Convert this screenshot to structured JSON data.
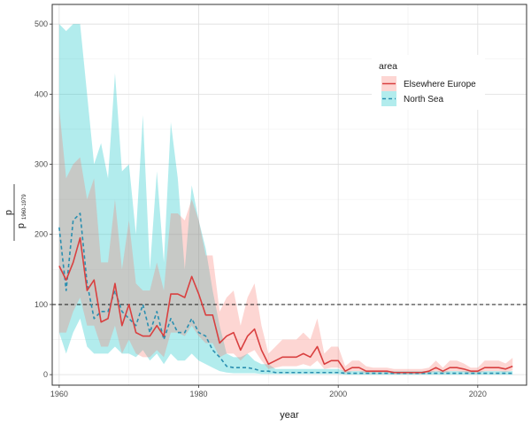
{
  "chart_data": {
    "type": "line",
    "xlabel": "year",
    "ylabel": {
      "numerator": "p",
      "denominator": "p",
      "denominator_subscript": "1960-1979"
    },
    "xlim": [
      1959,
      2027
    ],
    "ylim": [
      -15,
      528
    ],
    "x_ticks": [
      1960,
      1980,
      2000,
      2020
    ],
    "y_ticks": [
      0,
      100,
      200,
      300,
      400,
      500
    ],
    "grid": true,
    "reference_line": {
      "y": 100,
      "style": "dashed",
      "color": "#000000"
    },
    "legend": {
      "title": "area",
      "position": "top-right"
    },
    "series": [
      {
        "name": "Elsewhere Europe",
        "color": "#d94040",
        "band_color": "#f8766d",
        "line_style": "solid",
        "x": [
          1960,
          1961,
          1962,
          1963,
          1964,
          1965,
          1966,
          1967,
          1968,
          1969,
          1970,
          1971,
          1972,
          1973,
          1974,
          1975,
          1976,
          1977,
          1978,
          1979,
          1980,
          1981,
          1982,
          1983,
          1984,
          1985,
          1986,
          1987,
          1988,
          1989,
          1990,
          1991,
          1992,
          1993,
          1994,
          1995,
          1996,
          1997,
          1998,
          1999,
          2000,
          2001,
          2002,
          2003,
          2004,
          2005,
          2006,
          2007,
          2008,
          2009,
          2010,
          2011,
          2012,
          2013,
          2014,
          2015,
          2016,
          2017,
          2018,
          2019,
          2020,
          2021,
          2022,
          2023,
          2024,
          2025
        ],
        "y": [
          155,
          135,
          160,
          195,
          120,
          135,
          75,
          80,
          130,
          70,
          100,
          60,
          55,
          55,
          70,
          55,
          115,
          115,
          110,
          140,
          115,
          85,
          85,
          45,
          55,
          60,
          35,
          55,
          65,
          35,
          15,
          20,
          25,
          25,
          25,
          30,
          25,
          40,
          15,
          20,
          20,
          5,
          10,
          10,
          5,
          5,
          5,
          5,
          3,
          3,
          3,
          3,
          3,
          5,
          10,
          5,
          10,
          10,
          8,
          5,
          5,
          10,
          10,
          10,
          8,
          12
        ],
        "y_lower": [
          60,
          60,
          90,
          110,
          70,
          70,
          40,
          40,
          70,
          30,
          50,
          30,
          25,
          25,
          35,
          25,
          60,
          60,
          55,
          70,
          55,
          45,
          45,
          25,
          30,
          30,
          20,
          30,
          35,
          20,
          8,
          10,
          12,
          12,
          12,
          15,
          12,
          20,
          8,
          10,
          10,
          2,
          5,
          5,
          2,
          2,
          2,
          2,
          1,
          1,
          1,
          1,
          1,
          2,
          5,
          2,
          5,
          5,
          4,
          2,
          2,
          5,
          5,
          5,
          4,
          6
        ],
        "y_upper": [
          380,
          280,
          300,
          310,
          250,
          280,
          160,
          160,
          250,
          150,
          220,
          130,
          120,
          120,
          160,
          120,
          230,
          230,
          220,
          250,
          220,
          170,
          170,
          90,
          110,
          120,
          70,
          110,
          130,
          70,
          30,
          40,
          50,
          50,
          50,
          60,
          50,
          80,
          30,
          40,
          40,
          12,
          20,
          20,
          12,
          10,
          10,
          10,
          8,
          8,
          8,
          8,
          8,
          10,
          20,
          10,
          20,
          20,
          16,
          10,
          10,
          20,
          20,
          20,
          16,
          24
        ]
      },
      {
        "name": "North Sea",
        "color": "#2a8fb0",
        "band_color": "#00bfc4",
        "line_style": "dashed",
        "x": [
          1960,
          1961,
          1962,
          1963,
          1964,
          1965,
          1966,
          1967,
          1968,
          1969,
          1970,
          1971,
          1972,
          1973,
          1974,
          1975,
          1976,
          1977,
          1978,
          1979,
          1980,
          1981,
          1982,
          1983,
          1984,
          1985,
          1986,
          1987,
          1988,
          1989,
          1990,
          1991,
          1992,
          1993,
          1994,
          1995,
          1996,
          1997,
          1998,
          1999,
          2000,
          2001,
          2002,
          2003,
          2004,
          2005,
          2006,
          2007,
          2008,
          2009,
          2010,
          2011,
          2012,
          2013,
          2014,
          2015,
          2016,
          2017,
          2018,
          2019,
          2020,
          2021,
          2022,
          2023,
          2024,
          2025
        ],
        "y": [
          210,
          120,
          220,
          230,
          130,
          80,
          90,
          90,
          120,
          90,
          80,
          70,
          100,
          60,
          90,
          50,
          80,
          60,
          60,
          80,
          60,
          55,
          35,
          25,
          12,
          10,
          10,
          10,
          8,
          5,
          5,
          3,
          3,
          3,
          3,
          3,
          3,
          3,
          3,
          3,
          3,
          2,
          2,
          2,
          2,
          2,
          2,
          2,
          2,
          2,
          2,
          2,
          2,
          2,
          2,
          2,
          2,
          2,
          2,
          2,
          2,
          2,
          2,
          2,
          2,
          2
        ],
        "y_lower": [
          60,
          30,
          60,
          80,
          40,
          30,
          30,
          30,
          40,
          30,
          30,
          25,
          35,
          20,
          30,
          15,
          30,
          20,
          20,
          30,
          20,
          15,
          10,
          5,
          3,
          2,
          2,
          2,
          2,
          1,
          1,
          1,
          1,
          1,
          1,
          1,
          1,
          1,
          1,
          1,
          1,
          0,
          0,
          0,
          0,
          0,
          0,
          0,
          0,
          0,
          0,
          0,
          0,
          0,
          0,
          0,
          0,
          0,
          0,
          0,
          0,
          0,
          0,
          0,
          0,
          0
        ],
        "y_upper": [
          500,
          490,
          500,
          500,
          400,
          300,
          330,
          280,
          430,
          290,
          300,
          200,
          370,
          150,
          290,
          160,
          360,
          280,
          150,
          270,
          220,
          180,
          120,
          70,
          30,
          25,
          25,
          30,
          20,
          15,
          15,
          8,
          8,
          8,
          8,
          8,
          8,
          8,
          8,
          8,
          8,
          5,
          5,
          5,
          5,
          5,
          5,
          5,
          5,
          5,
          5,
          5,
          5,
          5,
          5,
          5,
          5,
          5,
          5,
          5,
          5,
          5,
          5,
          5,
          5,
          5
        ]
      }
    ]
  }
}
